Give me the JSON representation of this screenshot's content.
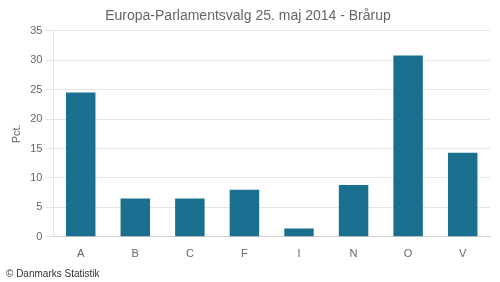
{
  "chart_data": {
    "type": "bar",
    "title": "Europa-Parlamentsvalg 25. maj 2014 - Brårup",
    "categories": [
      "A",
      "B",
      "C",
      "F",
      "I",
      "N",
      "O",
      "V"
    ],
    "values": [
      24.5,
      6.5,
      6.5,
      8.0,
      1.4,
      8.8,
      30.8,
      14.3
    ],
    "color": "#1a6e8e",
    "ylabel": "Pct.",
    "footer": "© Danmarks Statistik",
    "ylim": [
      0,
      35
    ],
    "yticks": [
      0,
      5,
      10,
      15,
      20,
      25,
      30,
      35
    ],
    "grid": true
  }
}
